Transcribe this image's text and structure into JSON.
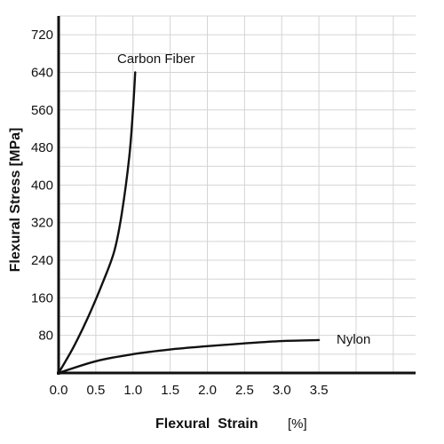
{
  "chart_data": {
    "type": "line",
    "title": "",
    "xlabel": "Flexural  Strain",
    "xlabel_unit": "[%]",
    "ylabel": "Flexural Stress",
    "ylabel_unit": "[MPa]",
    "xlim": [
      0,
      4.8
    ],
    "ylim": [
      0,
      760
    ],
    "x_ticks": [
      0.0,
      0.5,
      1.0,
      1.5,
      2.0,
      2.5,
      3.0,
      3.5
    ],
    "x_tick_labels": [
      "0.0",
      "0.5",
      "1.0",
      "1.5",
      "2.0",
      "2.5",
      "3.0",
      "3.5"
    ],
    "y_ticks": [
      80,
      160,
      240,
      320,
      400,
      480,
      560,
      640,
      720
    ],
    "y_tick_labels": [
      "80",
      "160",
      "240",
      "320",
      "400",
      "480",
      "560",
      "640",
      "720"
    ],
    "grid": true,
    "legend": "none",
    "series": [
      {
        "name": "Carbon Fiber",
        "x": [
          0,
          0.2,
          0.4,
          0.6,
          0.75,
          0.85,
          0.95,
          1.0,
          1.03
        ],
        "y": [
          0,
          55,
          120,
          195,
          260,
          340,
          460,
          560,
          640
        ]
      },
      {
        "name": "Nylon",
        "x": [
          0,
          0.5,
          1.0,
          1.5,
          2.0,
          2.5,
          3.0,
          3.5
        ],
        "y": [
          0,
          25,
          40,
          50,
          57,
          63,
          68,
          70
        ]
      }
    ]
  }
}
